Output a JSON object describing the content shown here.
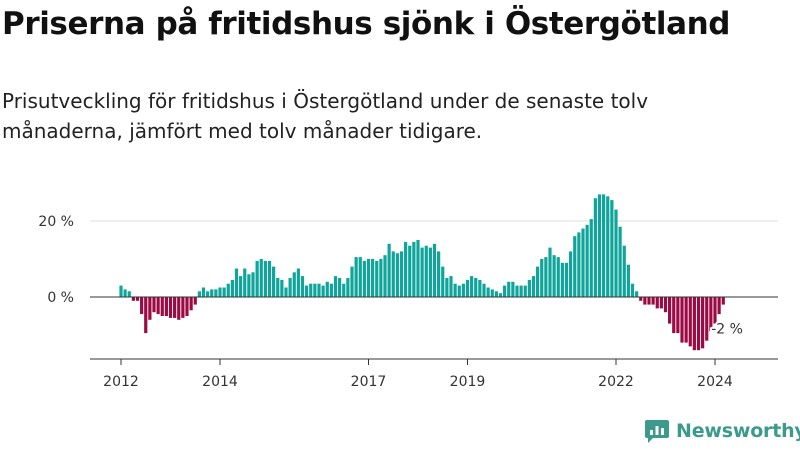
{
  "header": {
    "title": "Priserna på fritidshus sjönk i Östergötland",
    "subtitle": "Prisutveckling för fritidshus i Östergötland under de senaste tolv månaderna, jämfört med tolv månader tidigare."
  },
  "brand": {
    "name": "Newsworthy",
    "logo_icon": "newsworthy-logo-icon",
    "color": "#3b9a8c"
  },
  "colors": {
    "positive": "#10a59b",
    "negative": "#9c0a43",
    "axis": "#333333",
    "grid": "#dddddd"
  },
  "chart_data": {
    "type": "bar",
    "x_unit": "month",
    "start_month": "2012-01",
    "ylim": [
      -15,
      30
    ],
    "yticks": [
      {
        "value": 0,
        "label": "0 %"
      },
      {
        "value": 20,
        "label": "20 %"
      }
    ],
    "xticks": [
      {
        "month": "2012-01",
        "label": "2012"
      },
      {
        "month": "2014-01",
        "label": "2014"
      },
      {
        "month": "2017-01",
        "label": "2017"
      },
      {
        "month": "2019-01",
        "label": "2019"
      },
      {
        "month": "2022-01",
        "label": "2022"
      },
      {
        "month": "2024-01",
        "label": "2024"
      }
    ],
    "values": [
      3.0,
      2.0,
      1.5,
      -1.0,
      -1.0,
      -4.5,
      -9.5,
      -6.0,
      -4.0,
      -4.5,
      -5.0,
      -5.0,
      -5.5,
      -5.5,
      -6.0,
      -5.5,
      -5.0,
      -3.5,
      -2.0,
      1.5,
      2.5,
      1.5,
      2.0,
      2.0,
      2.5,
      2.5,
      3.5,
      4.5,
      7.5,
      5.5,
      7.5,
      6.0,
      6.5,
      9.5,
      10.0,
      9.5,
      9.5,
      8.0,
      5.0,
      4.5,
      2.5,
      5.0,
      6.5,
      7.5,
      5.5,
      3.0,
      3.5,
      3.5,
      3.5,
      3.0,
      4.0,
      3.5,
      5.5,
      5.0,
      3.5,
      5.0,
      8.0,
      10.5,
      10.5,
      9.5,
      10.0,
      10.0,
      9.5,
      10.0,
      11.0,
      14.0,
      12.0,
      11.5,
      12.0,
      14.5,
      13.5,
      14.5,
      15.0,
      13.0,
      13.5,
      13.0,
      14.0,
      12.0,
      8.0,
      5.0,
      5.5,
      3.5,
      3.0,
      3.5,
      4.5,
      5.5,
      5.0,
      4.5,
      3.5,
      2.5,
      2.0,
      1.5,
      1.0,
      3.0,
      4.0,
      4.0,
      3.0,
      3.0,
      3.0,
      4.5,
      5.5,
      8.0,
      10.0,
      10.5,
      13.0,
      11.0,
      10.5,
      9.0,
      9.0,
      12.0,
      16.0,
      17.0,
      18.0,
      19.0,
      20.5,
      26.0,
      27.0,
      27.0,
      26.5,
      25.5,
      23.0,
      18.5,
      13.5,
      8.5,
      3.5,
      1.5,
      -1.0,
      -2.0,
      -2.0,
      -2.0,
      -3.0,
      -3.0,
      -4.0,
      -7.0,
      -9.5,
      -9.5,
      -12.0,
      -12.0,
      -13.0,
      -14.0,
      -14.0,
      -13.5,
      -11.5,
      -9.0,
      -7.0,
      -4.5,
      -2.0
    ],
    "annotation": {
      "index": 146,
      "label": "-2 %"
    }
  }
}
